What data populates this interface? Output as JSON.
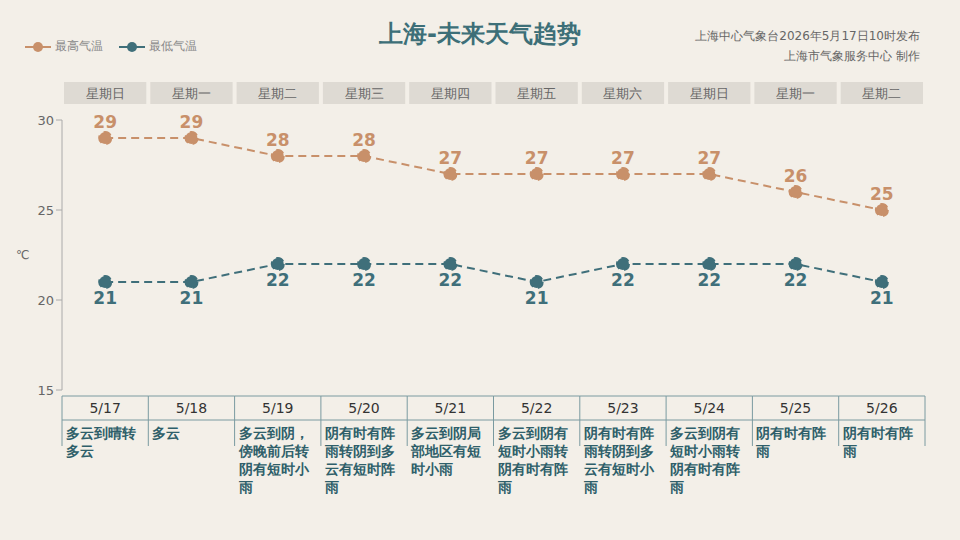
{
  "chart_data": {
    "type": "line",
    "title": "上海-未来天气趋势",
    "annotations": [
      "上海中心气象台2026年5月17日10时发布",
      "上海市气象服务中心 制作"
    ],
    "categories": [
      "5/17",
      "5/18",
      "5/19",
      "5/20",
      "5/21",
      "5/22",
      "5/23",
      "5/24",
      "5/25",
      "5/26"
    ],
    "weekdays": [
      "星期日",
      "星期一",
      "星期二",
      "星期三",
      "星期四",
      "星期五",
      "星期六",
      "星期日",
      "星期一",
      "星期二"
    ],
    "descriptions": [
      "多云到晴转多云",
      "多云",
      "多云到阴，傍晚前后转阴有短时小雨",
      "阴有时有阵雨转阴到多云有短时阵雨",
      "多云到阴局部地区有短时小雨",
      "多云到阴有短时小雨转阴有时有阵雨",
      "阴有时有阵雨转阴到多云有短时小雨",
      "多云到阴有短时小雨转阴有时有阵雨",
      "阴有时有阵雨",
      "阴有时有阵雨"
    ],
    "y_label": "℃",
    "ylim": [
      15,
      30
    ],
    "yticks": [
      15,
      20,
      25,
      30
    ],
    "grid": false,
    "legend": "upper left",
    "data_labels": true,
    "marker": "circle",
    "line_style": "dashed",
    "series": [
      {
        "name": "最高气温",
        "color": "#c8906a",
        "values": [
          29,
          29,
          28,
          28,
          27,
          27,
          27,
          27,
          26,
          25
        ]
      },
      {
        "name": "最低气温",
        "color": "#3f6f7a",
        "values": [
          21,
          21,
          22,
          22,
          22,
          21,
          22,
          22,
          22,
          21
        ]
      }
    ]
  }
}
